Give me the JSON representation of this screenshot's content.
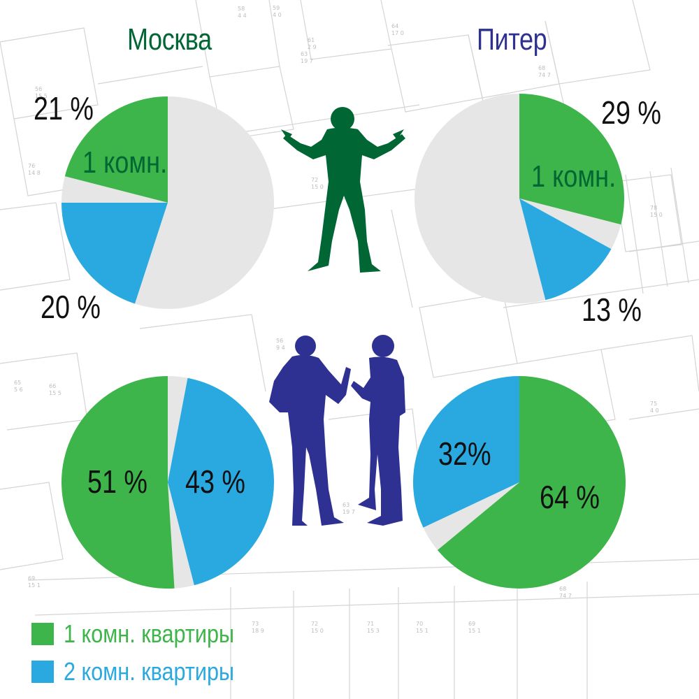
{
  "colors": {
    "green": "#3db54a",
    "blue": "#29a9e0",
    "gray": "#e6e6e6",
    "dark_green": "#006633",
    "navy": "#2e3192"
  },
  "titles": {
    "moscow": "Москва",
    "piter": "Питер"
  },
  "legend": [
    {
      "label": "1 комн. квартиры",
      "color": "#3db54a"
    },
    {
      "label": "2 комн. квартиры",
      "color": "#29a9e0"
    }
  ],
  "chart_data": [
    {
      "type": "pie",
      "city": "Москва",
      "series": [
        {
          "name": "1 комн. квартиры",
          "value": 21,
          "label": "21 %",
          "color": "#3db54a"
        },
        {
          "name": "",
          "value": 4,
          "color": "#e6e6e6"
        },
        {
          "name": "2 комн. квартиры",
          "value": 20,
          "label": "20 %",
          "color": "#29a9e0"
        },
        {
          "name": "",
          "value": 55,
          "color": "#e6e6e6"
        }
      ],
      "inside_label": "1 комн."
    },
    {
      "type": "pie",
      "city": "Питер",
      "series": [
        {
          "name": "1 комн. квартиры",
          "value": 29,
          "label": "29 %",
          "color": "#3db54a"
        },
        {
          "name": "",
          "value": 4,
          "color": "#e6e6e6"
        },
        {
          "name": "2 комн. квартиры",
          "value": 13,
          "label": "13 %",
          "color": "#29a9e0"
        },
        {
          "name": "",
          "value": 54,
          "color": "#e6e6e6"
        }
      ],
      "inside_label": "1 комн."
    },
    {
      "type": "pie",
      "city": "Москва",
      "series": [
        {
          "name": "",
          "value": 3,
          "color": "#e6e6e6"
        },
        {
          "name": "2 комн. квартиры",
          "value": 43,
          "label": "43 %",
          "color": "#29a9e0"
        },
        {
          "name": "",
          "value": 3,
          "color": "#e6e6e6"
        },
        {
          "name": "1 комн. квартиры",
          "value": 51,
          "label": "51 %",
          "color": "#3db54a"
        }
      ]
    },
    {
      "type": "pie",
      "city": "Питер",
      "series": [
        {
          "name": "1 комн. квартиры",
          "value": 64,
          "label": "64 %",
          "color": "#3db54a"
        },
        {
          "name": "",
          "value": 4,
          "color": "#e6e6e6"
        },
        {
          "name": "2 комн. квартиры",
          "value": 32,
          "label": "32%",
          "color": "#29a9e0"
        }
      ]
    }
  ]
}
